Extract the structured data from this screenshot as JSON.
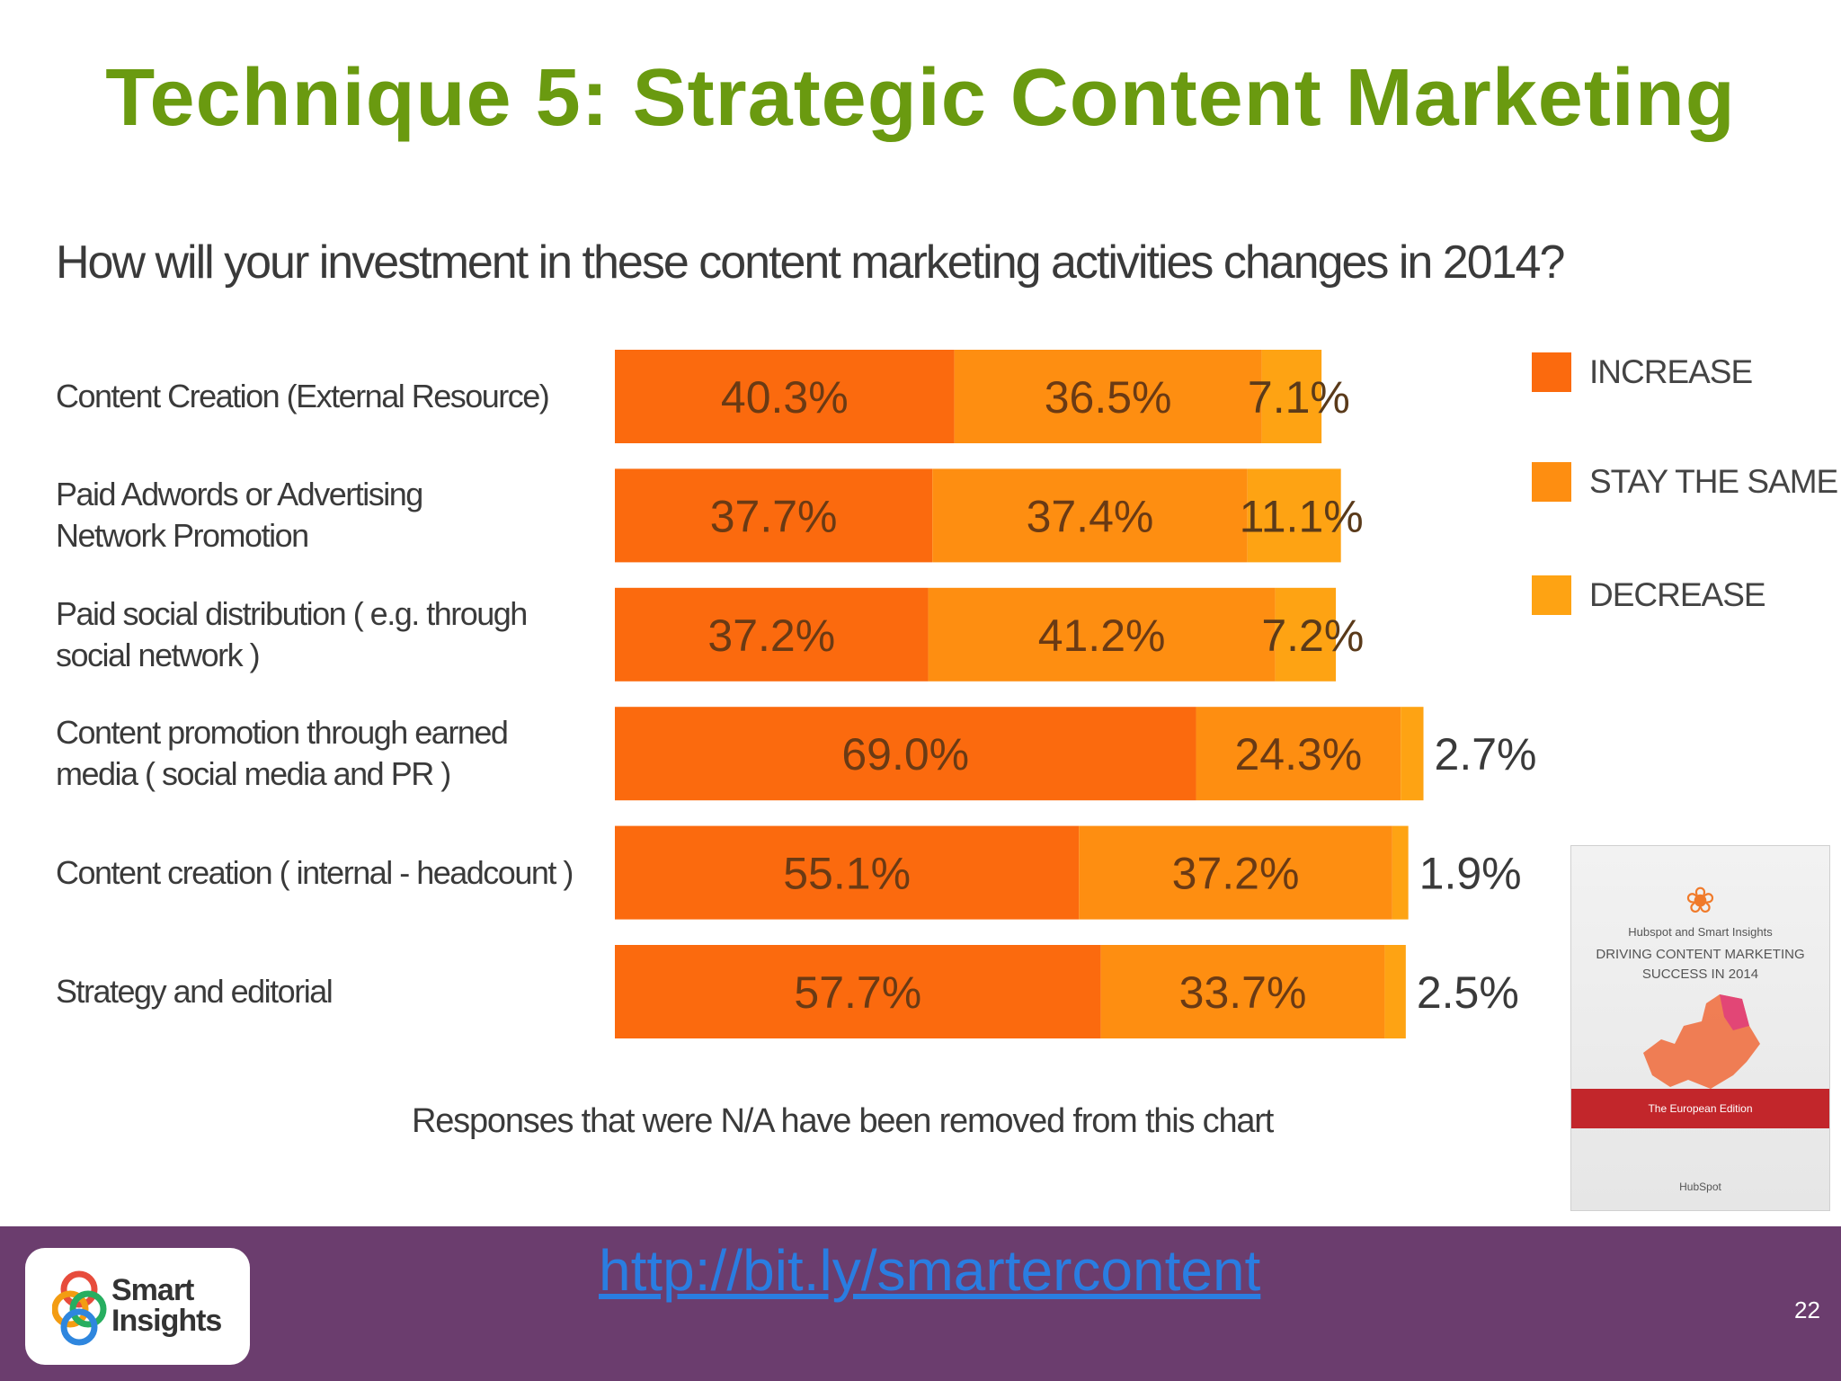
{
  "slide": {
    "title": "Technique 5: Strategic Content Marketing",
    "link": "http://bit.ly/smartercontent",
    "page_number": "22",
    "logo_line1": "Smart",
    "logo_line2": "Insights"
  },
  "book": {
    "subtitle": "Hubspot and Smart Insights",
    "title_line1": "DRIVING CONTENT MARKETING",
    "title_line2": "SUCCESS IN 2014",
    "ribbon": "The European Edition",
    "footer": "HubSpot"
  },
  "colors": {
    "increase": "#fb6a0e",
    "stay_the_same": "#fe8e11",
    "decrease": "#fea313",
    "title": "#6a9a10",
    "footer": "#6b3d6e"
  },
  "chart_data": {
    "type": "bar",
    "orientation": "horizontal",
    "stacked": true,
    "title": "How will your investment in these content marketing activities changes in 2014?",
    "note": "Responses that were N/A have been removed from this chart",
    "categories": [
      [
        "Content Creation (External Resource)"
      ],
      [
        "Paid Adwords or Advertising",
        "Network Promotion"
      ],
      [
        "Paid social distribution ( e.g. through",
        "social network )"
      ],
      [
        "Content promotion through earned",
        "media ( social media and PR )"
      ],
      [
        "Content creation ( internal - headcount )"
      ],
      [
        "Strategy and editorial"
      ]
    ],
    "series": [
      {
        "name": "INCREASE",
        "values": [
          40.3,
          37.7,
          37.2,
          69.0,
          55.1,
          57.7
        ],
        "labels": [
          "40.3%",
          "37.7%",
          "37.2%",
          "69.0%",
          "55.1%",
          "57.7%"
        ]
      },
      {
        "name": "STAY THE SAME",
        "values": [
          36.5,
          37.4,
          41.2,
          24.3,
          37.2,
          33.7
        ],
        "labels": [
          "36.5%",
          "37.4%",
          "41.2%",
          "24.3%",
          "37.2%",
          "33.7%"
        ]
      },
      {
        "name": "DECREASE",
        "values": [
          7.1,
          11.1,
          7.2,
          2.7,
          1.9,
          2.5
        ],
        "labels": [
          "7.1%",
          "11.1%",
          "7.2%",
          "2.7%",
          "1.9%",
          "2.5%"
        ]
      }
    ],
    "legend_position": "right",
    "grid": false
  }
}
